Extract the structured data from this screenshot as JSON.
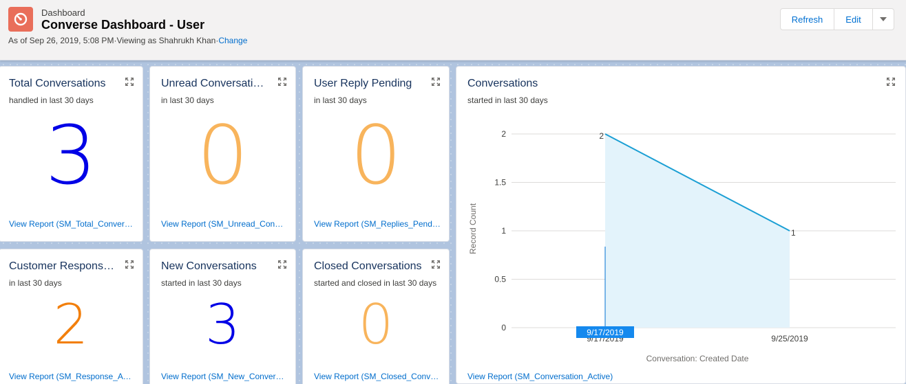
{
  "header": {
    "breadcrumb": "Dashboard",
    "title": "Converse Dashboard - User",
    "as_of": "As of Sep 26, 2019, 5:08 PM",
    "sep1": "·",
    "viewing_as": "Viewing as Shahrukh Khan",
    "sep2": "·",
    "change_link": "Change",
    "icon": "dashboard-gauge-icon",
    "icon_color": "#e96e5a",
    "buttons": {
      "refresh": "Refresh",
      "edit": "Edit",
      "more_icon": "chevron-down-icon"
    }
  },
  "widgets": [
    {
      "title": "Total Conversations",
      "subtitle": "handled in last 30 days",
      "value": "3",
      "color": "#0000e6",
      "link": "View Report (SM_Total_Conversations)"
    },
    {
      "title": "Unread Conversations",
      "subtitle": "in last 30 days",
      "value": "0",
      "color": "#f8b45c",
      "link": "View Report (SM_Unread_Conversations)"
    },
    {
      "title": "User Reply Pending",
      "subtitle": "in last 30 days",
      "value": "0",
      "color": "#f8b45c",
      "link": "View Report (SM_Replies_Pending)"
    },
    {
      "title": "Customer Response Awaited",
      "subtitle": "in last 30 days",
      "value": "2",
      "color": "#f27f0c",
      "link": "View Report (SM_Response_Awaited)"
    },
    {
      "title": "New Conversations",
      "subtitle": "started in last 30 days",
      "value": "3",
      "color": "#0000e6",
      "link": "View Report (SM_New_Conversations)"
    },
    {
      "title": "Closed Conversations",
      "subtitle": "started and closed in last 30 days",
      "value": "0",
      "color": "#f8b45c",
      "link": "View Report (SM_Closed_Conversations)"
    }
  ],
  "chart_widget": {
    "title": "Conversations",
    "subtitle": "started in last 30 days",
    "link": "View Report (SM_Conversation_Active)"
  },
  "chart_data": {
    "type": "area",
    "x": [
      "9/17/2019",
      "9/25/2019"
    ],
    "values": [
      2,
      1
    ],
    "data_labels": [
      "2",
      "1"
    ],
    "xlabel": "Conversation: Created Date",
    "ylabel": "Record Count",
    "ylim": [
      0,
      2
    ],
    "yticks": [
      "0",
      "0.5",
      "1",
      "1.5",
      "2"
    ],
    "grid": true,
    "hover_label": "9/17/2019",
    "line_color": "#1b9fd4",
    "fill_color": "#e3f3fb"
  }
}
